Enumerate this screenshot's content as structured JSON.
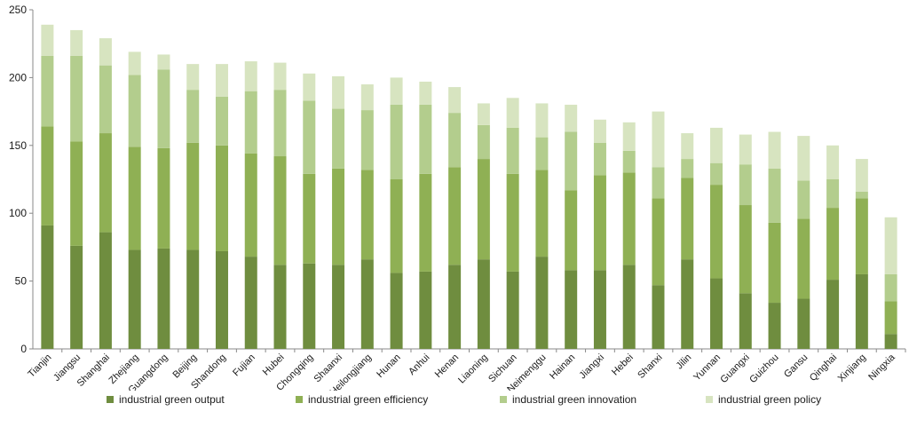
{
  "chart_data": {
    "type": "bar",
    "stacked": true,
    "title": "",
    "xlabel": "",
    "ylabel": "",
    "ylim": [
      0,
      250
    ],
    "yticks": [
      0,
      50,
      100,
      150,
      200,
      250
    ],
    "grid": false,
    "legend_position": "bottom",
    "categories": [
      "Tianjin",
      "Jiangsu",
      "Shanghai",
      "Zhejiang",
      "Guangdong",
      "Beijing",
      "Shandong",
      "Fujian",
      "Hubei",
      "Chongqing",
      "Shaanxi",
      "Heilongjiang",
      "Hunan",
      "Anhui",
      "Henan",
      "Liaoning",
      "Sichuan",
      "Neimenggu",
      "Hainan",
      "Jiangxi",
      "Hebei",
      "Shanxi",
      "Jilin",
      "Yunnan",
      "Guangxi",
      "Guizhou",
      "Gansu",
      "Qinghai",
      "Xinjiang",
      "Ningxia"
    ],
    "series": [
      {
        "name": "industrial green output",
        "color": "#6f8d3f",
        "values": [
          91,
          76,
          86,
          73,
          74,
          73,
          72,
          68,
          62,
          63,
          62,
          66,
          56,
          57,
          62,
          66,
          57,
          68,
          58,
          58,
          62,
          47,
          66,
          52,
          41,
          34,
          37,
          51,
          55,
          11
        ]
      },
      {
        "name": "industrial green efficiency",
        "color": "#8fb054",
        "values": [
          73,
          77,
          73,
          76,
          74,
          79,
          78,
          76,
          80,
          66,
          71,
          66,
          69,
          72,
          72,
          74,
          72,
          64,
          59,
          70,
          68,
          64,
          60,
          69,
          65,
          59,
          59,
          53,
          56,
          24
        ]
      },
      {
        "name": "industrial green innovation",
        "color": "#b3cd8d",
        "values": [
          52,
          63,
          50,
          53,
          58,
          39,
          36,
          46,
          49,
          54,
          44,
          44,
          55,
          51,
          40,
          25,
          34,
          24,
          43,
          24,
          16,
          23,
          14,
          16,
          30,
          40,
          28,
          21,
          5,
          20
        ]
      },
      {
        "name": "industrial green policy",
        "color": "#d7e4c0",
        "values": [
          23,
          19,
          20,
          17,
          11,
          19,
          24,
          22,
          20,
          20,
          24,
          19,
          20,
          17,
          19,
          16,
          22,
          25,
          20,
          17,
          21,
          41,
          19,
          26,
          22,
          27,
          33,
          25,
          24,
          42
        ]
      }
    ]
  }
}
